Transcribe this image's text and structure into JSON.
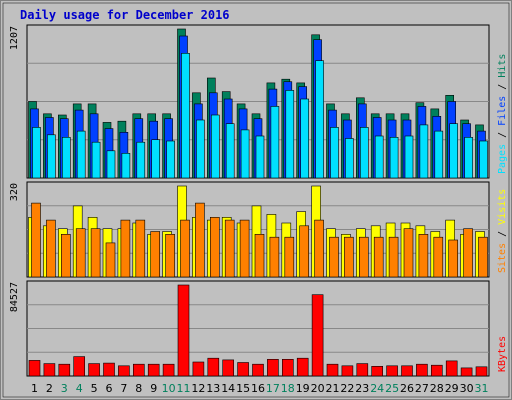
{
  "chart_data": {
    "type": "bar",
    "title": "Daily usage for December 2016",
    "categories": [
      "1",
      "2",
      "3",
      "4",
      "5",
      "6",
      "7",
      "8",
      "9",
      "10",
      "11",
      "12",
      "13",
      "14",
      "15",
      "16",
      "17",
      "18",
      "19",
      "20",
      "21",
      "22",
      "23",
      "24",
      "25",
      "26",
      "27",
      "28",
      "29",
      "30",
      "31"
    ],
    "weekend_days": [
      "3",
      "4",
      "10",
      "11",
      "17",
      "18",
      "24",
      "25",
      "31"
    ],
    "panels": [
      {
        "name": "hits-files-pages",
        "scale_max": 1207,
        "scale_label": "1207",
        "legend": [
          "Pages",
          "Files",
          "Hits"
        ],
        "series": [
          {
            "name": "Hits",
            "color": "#00805c",
            "values": [
              620,
              520,
              510,
              600,
              600,
              450,
              460,
              520,
              520,
              520,
              1207,
              690,
              810,
              700,
              600,
              520,
              770,
              800,
              770,
              1160,
              600,
              520,
              650,
              520,
              520,
              520,
              610,
              560,
              670,
              470,
              430
            ]
          },
          {
            "name": "Files",
            "color": "#0040ff",
            "values": [
              560,
              490,
              480,
              550,
              520,
              400,
              370,
              480,
              460,
              480,
              1150,
              600,
              690,
              640,
              560,
              480,
              720,
              780,
              740,
              1120,
              550,
              470,
              600,
              490,
              470,
              470,
              580,
              500,
              620,
              440,
              380
            ]
          },
          {
            "name": "Pages",
            "color": "#00e0ff",
            "values": [
              410,
              350,
              330,
              380,
              290,
              220,
              200,
              290,
              310,
              300,
              1010,
              470,
              510,
              440,
              390,
              340,
              580,
              710,
              640,
              950,
              410,
              320,
              410,
              340,
              330,
              340,
              430,
              380,
              440,
              330,
              300
            ]
          }
        ]
      },
      {
        "name": "visits-sites",
        "scale_max": 320,
        "scale_label": "320",
        "legend": [
          "Sites",
          "Visits"
        ],
        "series": [
          {
            "name": "Visits",
            "color": "#ffff00",
            "values": [
              210,
              180,
              170,
              250,
              210,
              170,
              170,
              190,
              150,
              160,
              320,
              210,
              200,
              210,
              190,
              250,
              220,
              190,
              230,
              320,
              170,
              150,
              170,
              180,
              190,
              190,
              180,
              160,
              200,
              150,
              160
            ]
          },
          {
            "name": "Sites",
            "color": "#ff8000",
            "values": [
              260,
              200,
              150,
              170,
              170,
              120,
              200,
              200,
              160,
              150,
              200,
              260,
              210,
              200,
              200,
              150,
              140,
              140,
              180,
              200,
              140,
              140,
              140,
              140,
              140,
              170,
              150,
              140,
              130,
              170,
              140
            ]
          }
        ]
      },
      {
        "name": "kbytes",
        "scale_max": 84527,
        "scale_label": "84527",
        "legend": [
          "KBytes"
        ],
        "series": [
          {
            "name": "KBytes",
            "color": "#ff0000",
            "values": [
              14500,
              11500,
              11000,
              18000,
              11500,
              12000,
              9500,
              11000,
              11000,
              11000,
              84527,
              13000,
              16500,
              15000,
              12500,
              11000,
              15500,
              15500,
              16500,
              75500,
              11000,
              9500,
              11500,
              9000,
              9500,
              9500,
              11000,
              10000,
              14000,
              7500,
              8500
            ]
          }
        ]
      }
    ]
  }
}
